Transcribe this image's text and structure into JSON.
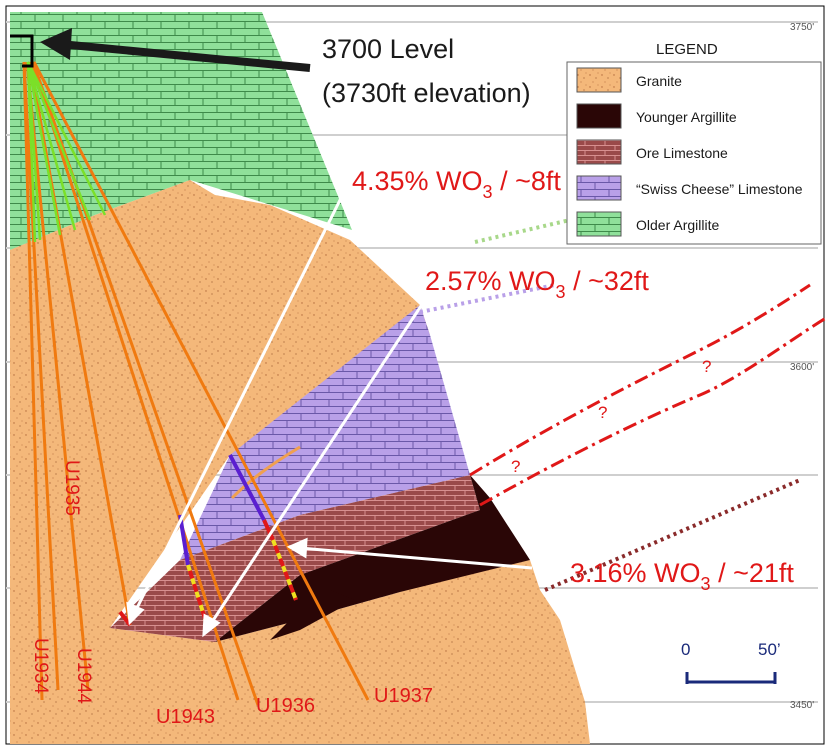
{
  "elevation_labels": {
    "top": "3750'",
    "middle": "3600'",
    "bottom": "3450'"
  },
  "level": {
    "name": "3700 Level",
    "elevation": "(3730ft elevation)"
  },
  "legend": {
    "title": "LEGEND",
    "items": [
      {
        "label": "Granite",
        "color": "#f4b87a"
      },
      {
        "label": "Younger Argillite",
        "color": "#2a0606"
      },
      {
        "label": "Ore Limestone",
        "color": "#9a4a4a"
      },
      {
        "label": "“Swiss Cheese” Limestone",
        "color": "#b9a0e8"
      },
      {
        "label": "Older Argillite",
        "color": "#8fe09a"
      }
    ]
  },
  "intercepts": [
    {
      "grade": "4.35% WO",
      "sub": "3",
      "width": " / ~8ft"
    },
    {
      "grade": "2.57% WO",
      "sub": "3",
      "width": " / ~32ft"
    },
    {
      "grade": "3.16% WO",
      "sub": "3",
      "width": " / ~21ft"
    }
  ],
  "drillholes": [
    "U1935",
    "U1934",
    "U1944",
    "U1943",
    "U1936",
    "U1937"
  ],
  "question_marks": [
    "?",
    "?",
    "?"
  ],
  "scale": {
    "start": "0",
    "end": "50’"
  },
  "colors": {
    "granite": "#f4b87a",
    "older_argillite": "#8fe09a",
    "swiss_cheese": "#b9a0e8",
    "ore_limestone": "#9a4a4a",
    "younger_argillite": "#2a0606",
    "drillhole": "#f07a10",
    "annotation": "#e01818",
    "scale_bar": "#1a2a7a"
  }
}
